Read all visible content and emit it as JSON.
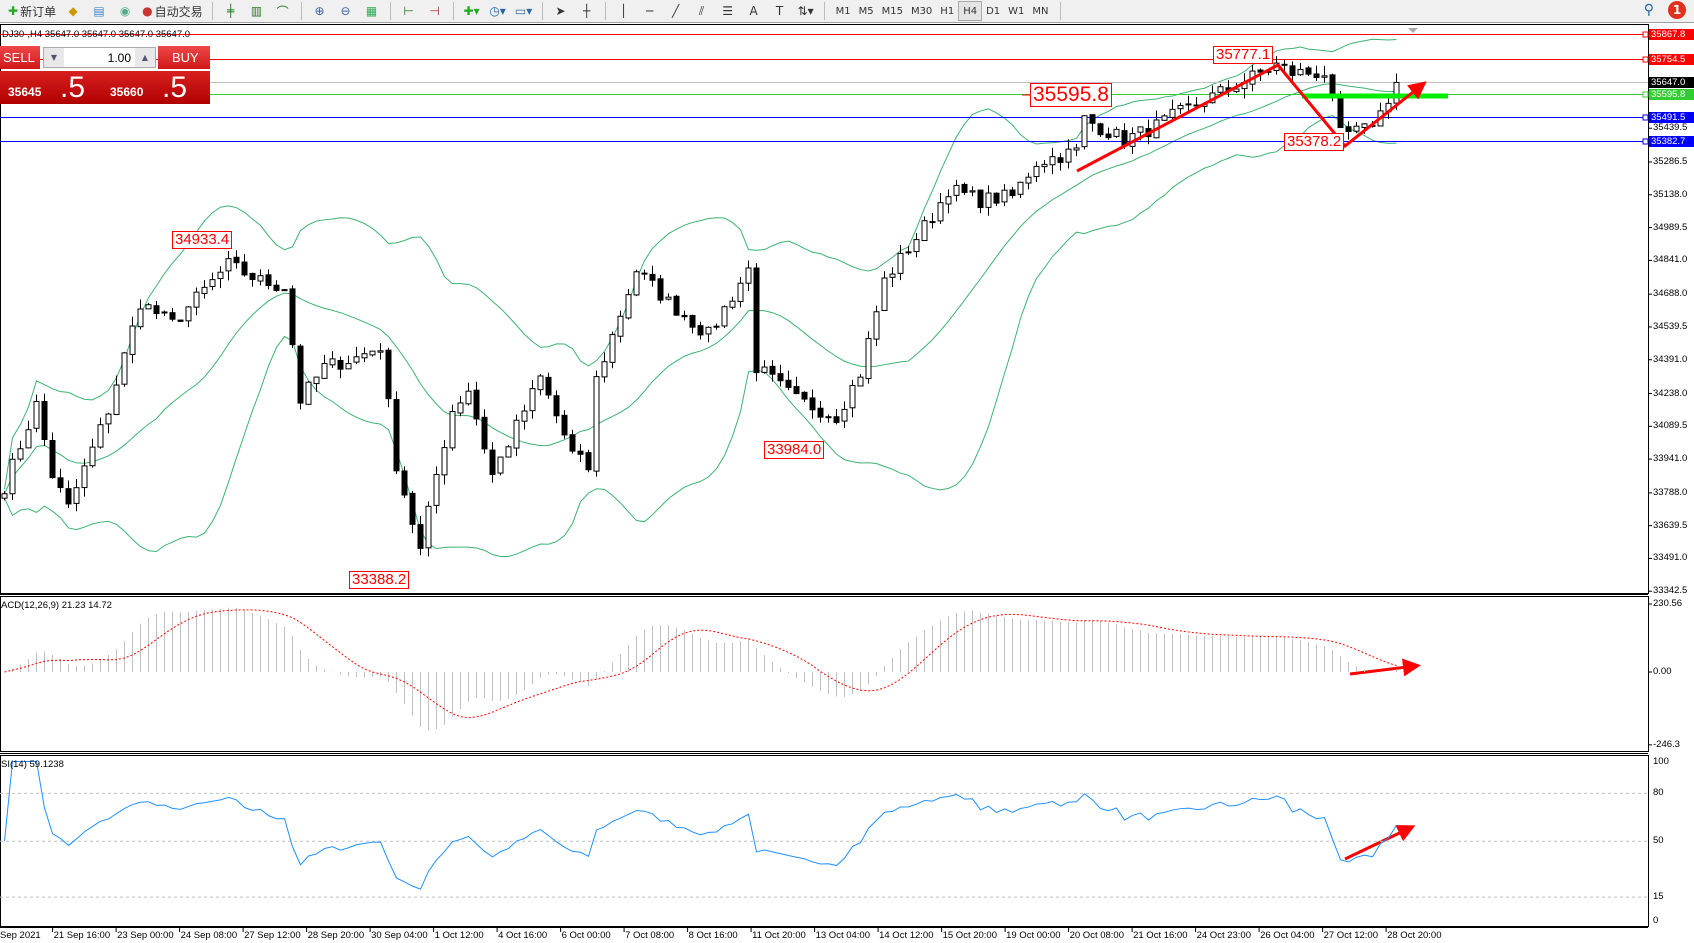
{
  "toolbar": {
    "new_order": "新订单",
    "auto_trading": "自动交易",
    "timeframes": [
      "M1",
      "M5",
      "M15",
      "M30",
      "H1",
      "H4",
      "D1",
      "W1",
      "MN"
    ],
    "active_timeframe": "H4",
    "notification_count": "1"
  },
  "chart_header": "DJ30-,H4  35647.0 35647.0 35647.0 35647.0",
  "trade_panel": {
    "sell_label": "SELL",
    "buy_label": "BUY",
    "lot": "1.00",
    "sell_price_main": "35645",
    "sell_price_frac": ".5",
    "buy_price_main": "35660",
    "buy_price_frac": ".5"
  },
  "price_axis": {
    "ticks": [
      "35439.5",
      "35286.5",
      "35138.0",
      "34989.5",
      "34841.0",
      "34688.0",
      "34539.5",
      "34391.0",
      "34238.0",
      "34089.5",
      "33941.0",
      "33788.0",
      "33639.5",
      "33491.0",
      "33342.5"
    ]
  },
  "hlines": [
    {
      "price": "35867.8",
      "color": "#ff0000"
    },
    {
      "price": "35754.5",
      "color": "#ff0000"
    },
    {
      "price": "35647.0",
      "color": "#000000",
      "line": "#c0c0c0"
    },
    {
      "price": "35595.8",
      "color": "#32cd32"
    },
    {
      "price": "35491.5",
      "color": "#0000ff"
    },
    {
      "price": "35382.7",
      "color": "#0000ff"
    }
  ],
  "annotations": [
    "35777.1",
    "35595.8",
    "35378.2",
    "34933.4",
    "33984.0",
    "33388.2"
  ],
  "macd": {
    "title": "ACD(12,26,9) 21.23 14.72",
    "ticks": [
      "230.56",
      "0.00",
      "-246.3"
    ]
  },
  "rsi": {
    "title": "SI(14) 59.1238",
    "ticks": [
      "100",
      "80",
      "50",
      "15",
      "0"
    ]
  },
  "dates": [
    "Sep 2021",
    "21 Sep 16:00",
    "23 Sep 00:00",
    "24 Sep 08:00",
    "27 Sep 12:00",
    "28 Sep 20:00",
    "30 Sep 04:00",
    "1 Oct 12:00",
    "4 Oct 16:00",
    "6 Oct 00:00",
    "7 Oct 08:00",
    "8 Oct 16:00",
    "11 Oct 20:00",
    "13 Oct 04:00",
    "14 Oct 12:00",
    "15 Oct 20:00",
    "19 Oct 00:00",
    "20 Oct 08:00",
    "21 Oct 16:00",
    "24 Oct 23:00",
    "26 Oct 04:00",
    "27 Oct 12:00",
    "28 Oct 20:00"
  ],
  "chart_data": {
    "type": "candlestick",
    "symbol": "DJ30-",
    "timeframe": "H4",
    "ylim": [
      33342.5,
      35867.8
    ],
    "close_anchors": [
      [
        0,
        33819
      ],
      [
        4,
        34186
      ],
      [
        6,
        33869
      ],
      [
        8,
        33720
      ],
      [
        13,
        34163
      ],
      [
        17,
        34652
      ],
      [
        21,
        34553
      ],
      [
        28,
        34820
      ],
      [
        32,
        34748
      ],
      [
        35,
        34720
      ],
      [
        37,
        34209
      ],
      [
        40,
        34358
      ],
      [
        44,
        34400
      ],
      [
        47,
        34453
      ],
      [
        49,
        33919
      ],
      [
        52,
        33525
      ],
      [
        54,
        33870
      ],
      [
        56,
        34163
      ],
      [
        58,
        34258
      ],
      [
        61,
        33869
      ],
      [
        67,
        34308
      ],
      [
        71,
        33964
      ],
      [
        73,
        33900
      ],
      [
        74,
        34300
      ],
      [
        79,
        34797
      ],
      [
        83,
        34652
      ],
      [
        88,
        34503
      ],
      [
        93,
        34800
      ],
      [
        94,
        34358
      ],
      [
        99,
        34209
      ],
      [
        104,
        34136
      ],
      [
        107,
        34331
      ],
      [
        110,
        34748
      ],
      [
        116,
        35042
      ],
      [
        118,
        35164
      ],
      [
        122,
        35114
      ],
      [
        126,
        35130
      ],
      [
        129,
        35286
      ],
      [
        134,
        35336
      ],
      [
        135,
        35481
      ],
      [
        140,
        35386
      ],
      [
        144,
        35450
      ],
      [
        148,
        35531
      ],
      [
        155,
        35653
      ],
      [
        159,
        35726
      ],
      [
        161,
        35690
      ],
      [
        165,
        35690
      ],
      [
        167,
        35408
      ],
      [
        170,
        35430
      ],
      [
        172,
        35508
      ],
      [
        174,
        35647
      ]
    ],
    "indicators": [
      "Bollinger Bands",
      "MACD(12,26,9)",
      "RSI(14)"
    ],
    "colors": {
      "bands": "#3cb371",
      "macd_hist": "#c0c0c0",
      "macd_signal": "#ff0000",
      "rsi": "#1e90ff",
      "annotation": "#ff0000",
      "support": "#00ee00"
    }
  }
}
